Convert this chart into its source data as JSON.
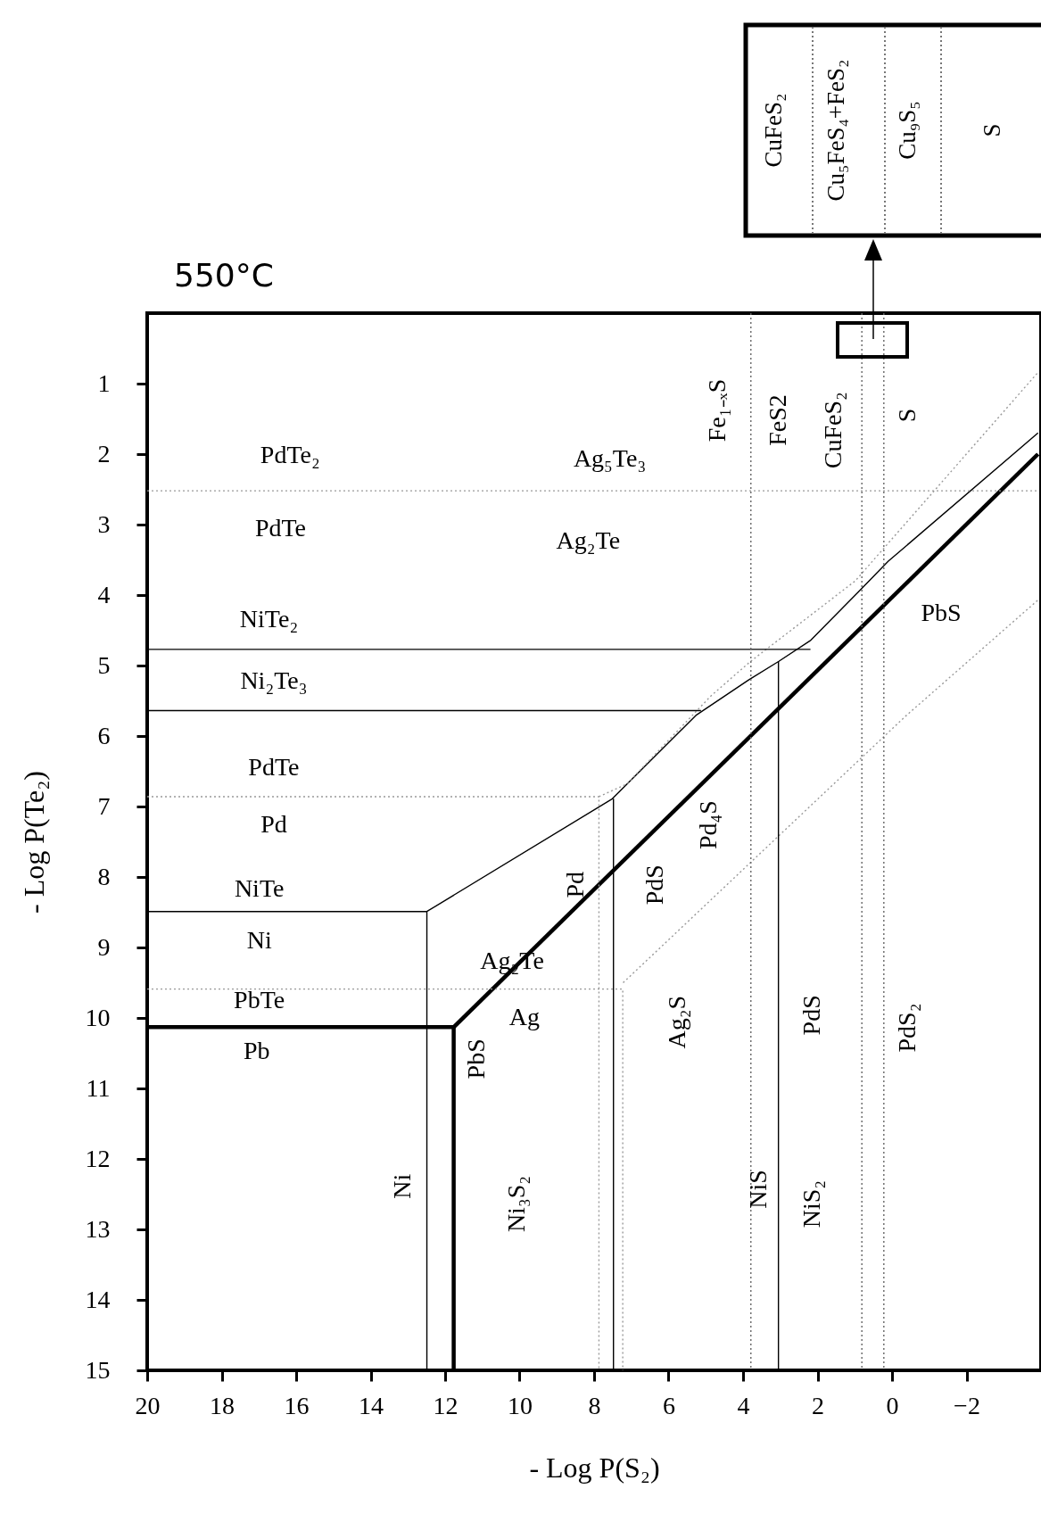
{
  "chart_data": {
    "type": "line",
    "title": "550°C",
    "xlabel": "- Log P(S₂)",
    "ylabel": "- Log P(Te₂)",
    "xlim": [
      20,
      -4
    ],
    "ylim": [
      15,
      0
    ],
    "xticks": [
      20,
      18,
      16,
      14,
      12,
      10,
      8,
      6,
      4,
      2,
      0,
      -2
    ],
    "yticks": [
      1,
      2,
      3,
      4,
      5,
      6,
      7,
      8,
      9,
      10,
      11,
      12,
      13,
      14,
      15
    ],
    "series": [
      {
        "color": "#000000",
        "line_style": "solid",
        "x": [
          20,
          11.77,
          11.77
        ],
        "values": [
          10.13,
          10.13,
          15
        ]
      },
      {
        "color": "#000000",
        "line_style": "solid",
        "x": [
          11.77,
          -3.92
        ],
        "values": [
          10.13,
          2.0
        ]
      },
      {
        "color": "#000000",
        "line_style": "solid",
        "x": [
          20,
          12.49,
          12.49
        ],
        "values": [
          8.49,
          8.49,
          15
        ]
      },
      {
        "color": "#000000",
        "line_style": "solid",
        "x": [
          12.49,
          7.51,
          5.25,
          3.84,
          3.04,
          2.18,
          0.91,
          0.1,
          -3.92
        ],
        "values": [
          8.49,
          6.89,
          5.7,
          5.2,
          4.94,
          4.64,
          3.96,
          3.52,
          1.7
        ]
      },
      {
        "color": "#999999",
        "line_style": "dotted",
        "x": [
          7.87,
          7.12,
          4.86,
          3.82,
          0.99,
          -3.92
        ],
        "values": [
          6.86,
          6.68,
          5.43,
          4.95,
          3.8,
          0.84
        ]
      },
      {
        "color": "#999999",
        "line_style": "dotted",
        "x": [
          7.22,
          -0.36,
          -3.92
        ],
        "values": [
          9.5,
          5.72,
          4.07
        ]
      },
      {
        "color": "#999999",
        "line_style": "dotted",
        "x": [
          20,
          -3.92
        ],
        "values": [
          2.52,
          2.52
        ]
      },
      {
        "color": "#000000",
        "line_style": "solid",
        "x": [
          20,
          2.19
        ],
        "values": [
          4.77,
          4.77
        ]
      },
      {
        "color": "#000000",
        "line_style": "solid",
        "x": [
          20,
          5.13
        ],
        "values": [
          5.64,
          5.64
        ]
      },
      {
        "color": "#999999",
        "line_style": "dotted",
        "x": [
          20,
          7.87,
          7.87
        ],
        "values": [
          6.86,
          6.86,
          15
        ]
      },
      {
        "color": "#999999",
        "line_style": "dotted",
        "x": [
          20,
          7.23,
          7.23
        ],
        "values": [
          9.59,
          9.59,
          15
        ]
      },
      {
        "color": "#000000",
        "line_style": "solid",
        "x": [
          7.48,
          7.48
        ],
        "values": [
          6.89,
          15
        ]
      },
      {
        "color": "#666666",
        "line_style": "dotted",
        "x": [
          3.79,
          3.79
        ],
        "values": [
          0,
          15
        ]
      },
      {
        "color": "#000000",
        "line_style": "solid",
        "x": [
          3.05,
          3.05
        ],
        "values": [
          4.94,
          15
        ]
      },
      {
        "color": "#666666",
        "line_style": "dotted",
        "x": [
          0.81,
          0.81
        ],
        "values": [
          0,
          15
        ]
      },
      {
        "color": "#666666",
        "line_style": "dotted",
        "x": [
          0.22,
          0.22
        ],
        "values": [
          0,
          15
        ]
      }
    ],
    "annotations": [
      "PdTe₂",
      "Ag₅Te₃",
      "PdTe",
      "Ag₂Te",
      "NiTe₂",
      "Ni₂Te₃",
      "PbS",
      "PdTe",
      "Pd",
      "NiTe",
      "Ni",
      "Ag₂Te",
      "PbTe",
      "Ag",
      "Pb",
      "Fe₁₋ₓS",
      "FeS2",
      "CuFeS₂",
      "S",
      "Pd₄S",
      "Pd",
      "PdS",
      "Ag₂S",
      "PdS",
      "PdS₂",
      "PbS",
      "Ni",
      "Ni₃S₂",
      "NiS",
      "NiS₂",
      "CuFeS₂",
      "Cu₅FeS₄+FeS₂",
      "Cu₉S₅",
      "S"
    ]
  }
}
